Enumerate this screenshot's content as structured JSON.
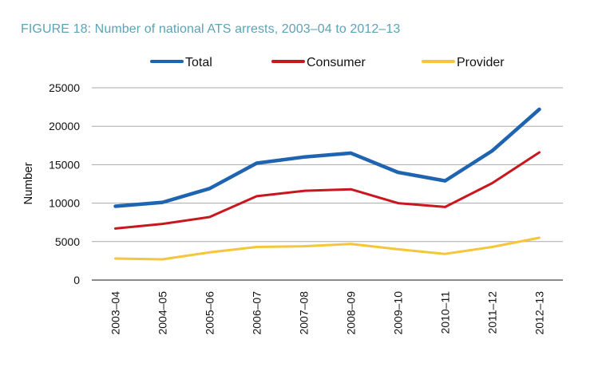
{
  "chart_data": {
    "type": "line",
    "title": "FIGURE 18: Number of national ATS arrests, 2003–04 to 2012–13",
    "xlabel": "",
    "ylabel": "Number",
    "categories": [
      "2003–04",
      "2004–05",
      "2005–06",
      "2006–07",
      "2007–08",
      "2008–09",
      "2009–10",
      "2010–11",
      "2011–12",
      "2012–13"
    ],
    "ylim": [
      0,
      25000
    ],
    "yticks": [
      "0",
      "5000",
      "10000",
      "15000",
      "20000",
      "25000"
    ],
    "grid": true,
    "legend_position": "top",
    "series": [
      {
        "name": "Total",
        "color": "#1f64b0",
        "values": [
          9600,
          10100,
          11900,
          15200,
          16000,
          16500,
          14000,
          12900,
          16800,
          22200
        ]
      },
      {
        "name": "Consumer",
        "color": "#c8171e",
        "values": [
          6700,
          7300,
          8200,
          10900,
          11600,
          11800,
          10000,
          9500,
          12600,
          16600
        ]
      },
      {
        "name": "Provider",
        "color": "#f5c53a",
        "values": [
          2800,
          2700,
          3600,
          4300,
          4400,
          4700,
          4000,
          3400,
          4300,
          5500
        ]
      }
    ]
  }
}
